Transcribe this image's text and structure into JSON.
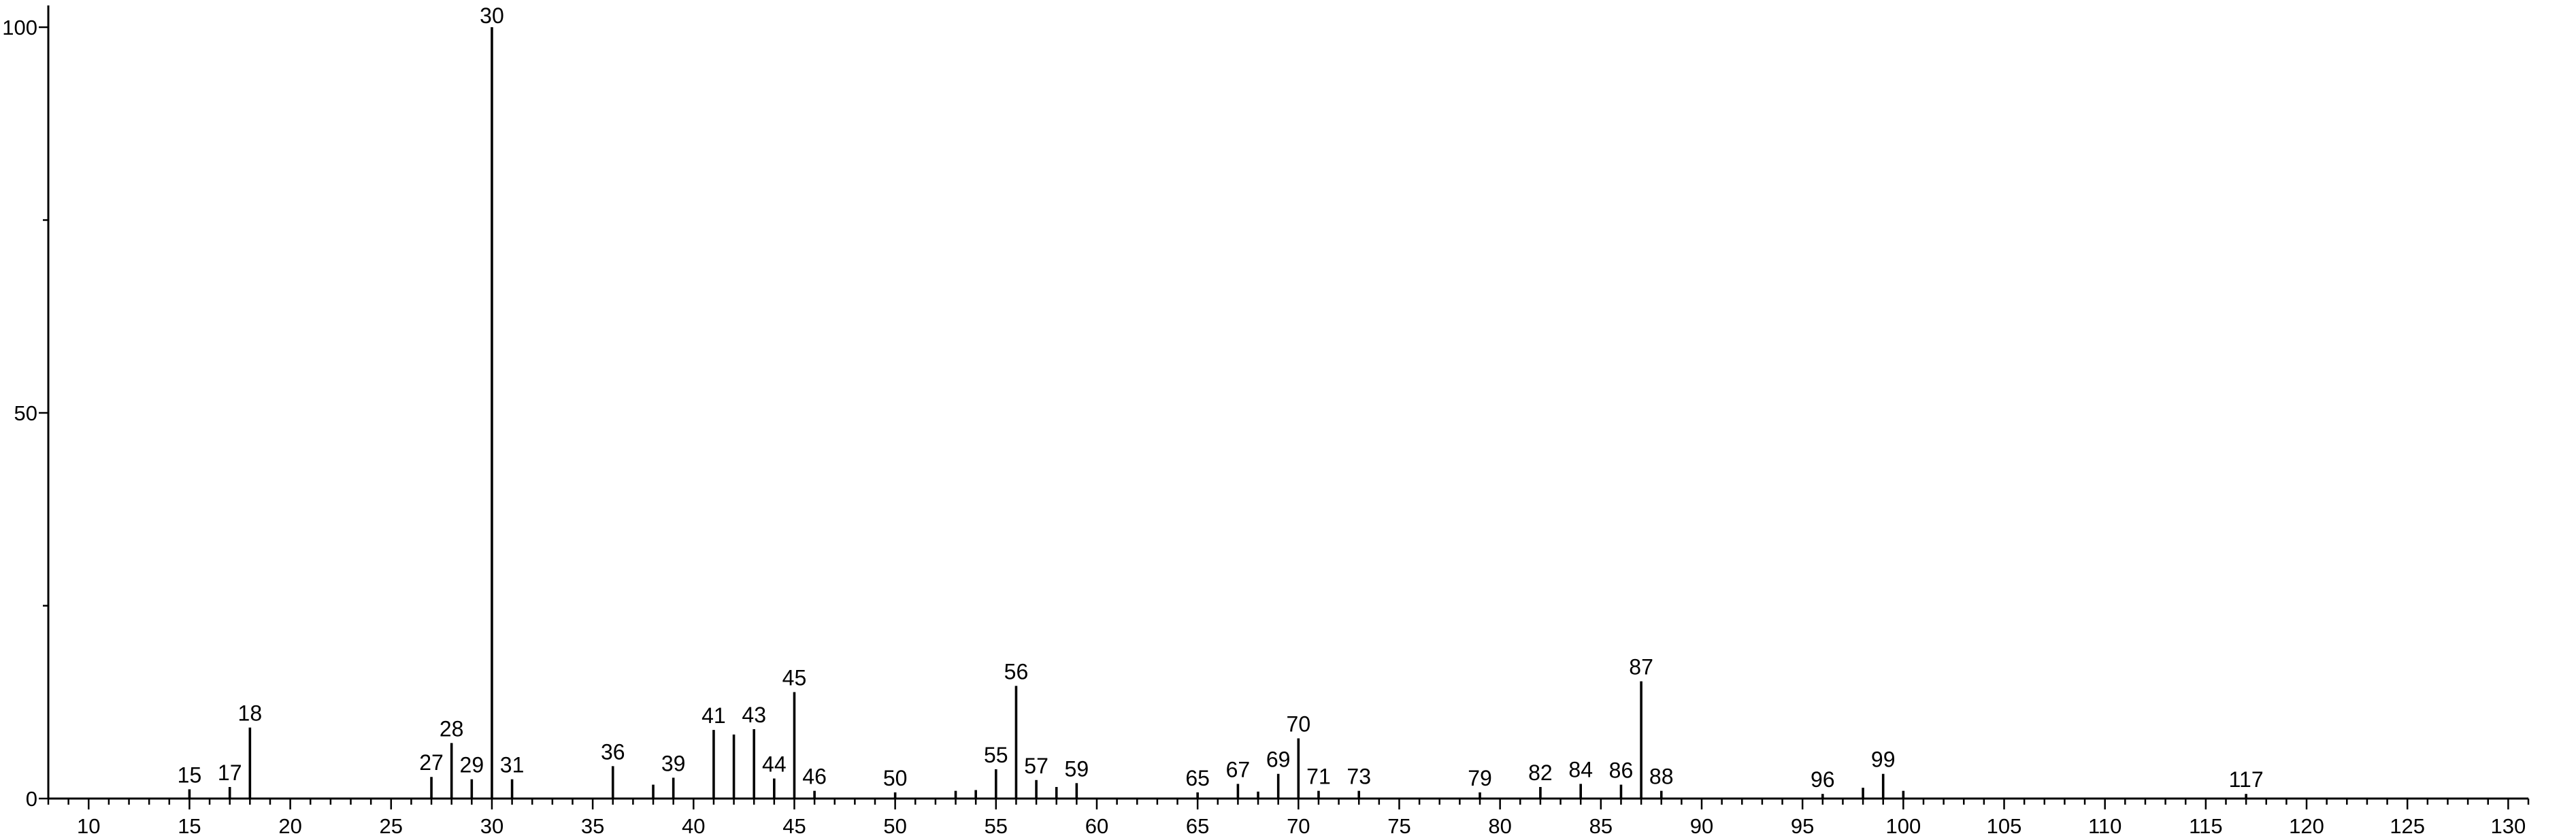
{
  "chart_data": {
    "type": "bar",
    "title": "",
    "xlabel": "",
    "ylabel": "",
    "xlim": [
      8,
      131
    ],
    "ylim": [
      0,
      100
    ],
    "x_ticks": [
      10,
      15,
      20,
      25,
      30,
      35,
      40,
      45,
      50,
      55,
      60,
      65,
      70,
      75,
      80,
      85,
      90,
      95,
      100,
      105,
      110,
      115,
      120,
      125,
      130
    ],
    "y_ticks": [
      0,
      50,
      100
    ],
    "grid": false,
    "legend": "none",
    "peaks": [
      {
        "x": 15,
        "y": 1.2,
        "label": "15"
      },
      {
        "x": 17,
        "y": 1.5,
        "label": "17"
      },
      {
        "x": 18,
        "y": 9.2,
        "label": "18"
      },
      {
        "x": 27,
        "y": 2.8,
        "label": "27"
      },
      {
        "x": 28,
        "y": 7.2,
        "label": "28"
      },
      {
        "x": 29,
        "y": 2.5,
        "label": "29"
      },
      {
        "x": 30,
        "y": 100,
        "label": "30"
      },
      {
        "x": 31,
        "y": 2.5,
        "label": "31"
      },
      {
        "x": 36,
        "y": 4.2,
        "label": "36"
      },
      {
        "x": 38,
        "y": 1.8,
        "label": ""
      },
      {
        "x": 39,
        "y": 2.7,
        "label": "39"
      },
      {
        "x": 41,
        "y": 8.9,
        "label": "41"
      },
      {
        "x": 42,
        "y": 8.3,
        "label": ""
      },
      {
        "x": 43,
        "y": 9.0,
        "label": "43"
      },
      {
        "x": 44,
        "y": 2.6,
        "label": "44"
      },
      {
        "x": 45,
        "y": 13.8,
        "label": "45"
      },
      {
        "x": 46,
        "y": 1.0,
        "label": "46"
      },
      {
        "x": 50,
        "y": 0.8,
        "label": "50"
      },
      {
        "x": 53,
        "y": 1.0,
        "label": ""
      },
      {
        "x": 54,
        "y": 1.1,
        "label": ""
      },
      {
        "x": 55,
        "y": 3.8,
        "label": "55"
      },
      {
        "x": 56,
        "y": 14.6,
        "label": "56"
      },
      {
        "x": 57,
        "y": 2.4,
        "label": "57"
      },
      {
        "x": 58,
        "y": 1.5,
        "label": ""
      },
      {
        "x": 59,
        "y": 2.0,
        "label": "59"
      },
      {
        "x": 65,
        "y": 0.8,
        "label": "65"
      },
      {
        "x": 67,
        "y": 1.9,
        "label": "67"
      },
      {
        "x": 68,
        "y": 0.9,
        "label": ""
      },
      {
        "x": 69,
        "y": 3.2,
        "label": "69"
      },
      {
        "x": 70,
        "y": 7.8,
        "label": "70"
      },
      {
        "x": 71,
        "y": 1.0,
        "label": "71"
      },
      {
        "x": 73,
        "y": 1.0,
        "label": "73"
      },
      {
        "x": 79,
        "y": 0.8,
        "label": "79"
      },
      {
        "x": 82,
        "y": 1.5,
        "label": "82"
      },
      {
        "x": 84,
        "y": 1.9,
        "label": "84"
      },
      {
        "x": 86,
        "y": 1.8,
        "label": "86"
      },
      {
        "x": 87,
        "y": 15.2,
        "label": "87"
      },
      {
        "x": 88,
        "y": 1.0,
        "label": "88"
      },
      {
        "x": 96,
        "y": 0.6,
        "label": "96"
      },
      {
        "x": 98,
        "y": 1.4,
        "label": ""
      },
      {
        "x": 99,
        "y": 3.2,
        "label": "99"
      },
      {
        "x": 100,
        "y": 1.0,
        "label": ""
      },
      {
        "x": 117,
        "y": 0.6,
        "label": "117"
      }
    ]
  }
}
